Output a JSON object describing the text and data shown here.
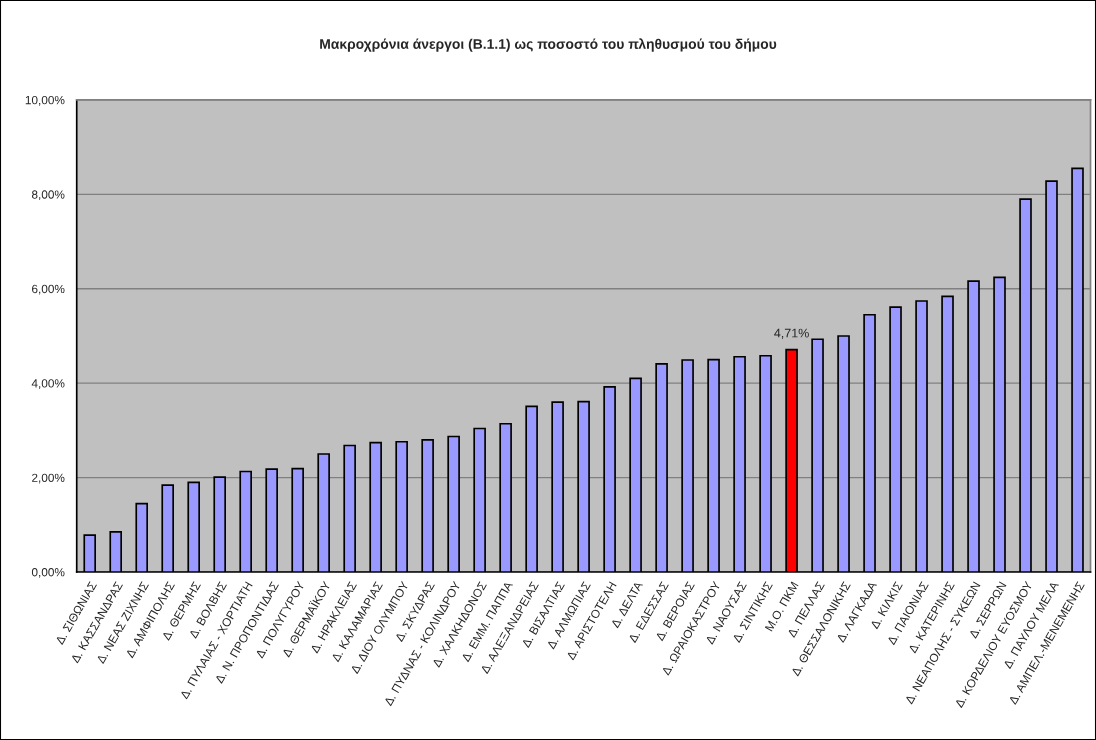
{
  "chart_data": {
    "type": "bar",
    "title": "Μακροχρόνια άνεργοι (Β.1.1) ως ποσοστό του πληθυσμού του δήμου",
    "categories": [
      "Δ. ΣΙΘΩΝΙΑΣ",
      "Δ. ΚΑΣΣΑΝΔΡΑΣ",
      "Δ. ΝΕΑΣ ΖΙΧΝΗΣ",
      "Δ. ΑΜΦΙΠΟΛΗΣ",
      "Δ. ΘΕΡΜΗΣ",
      "Δ. ΒΟΛΒΗΣ",
      "Δ. ΠΥΛΑΙΑΣ - ΧΟΡΤΙΑΤΗ",
      "Δ. Ν. ΠΡΟΠΟΝΤΙΔΑΣ",
      "Δ. ΠΟΛΥΓΥΡΟΥ",
      "Δ. ΘΕΡΜΑΪΚΟΥ",
      "Δ. ΗΡΑΚΛΕΙΑΣ",
      "Δ. ΚΑΛΑΜΑΡΙΑΣ",
      "Δ. ΔΙΟΥ ΟΛΥΜΠΟΥ",
      "Δ. ΣΚΥΔΡΑΣ",
      "Δ. ΠΥΔΝΑΣ - ΚΟΛΙΝΔΡΟΥ",
      "Δ. ΧΑΛΚΗΔΟΝΟΣ",
      "Δ. ΕΜΜ. ΠΑΠΠΑ",
      "Δ. ΑΛΕΞΑΝΔΡΕΙΑΣ",
      "Δ. ΒΙΣΑΛΤΙΑΣ",
      "Δ. ΑΛΜΩΠΙΑΣ",
      "Δ. ΑΡΙΣΤΟΤΕΛΗ",
      "Δ. ΔΕΛΤΑ",
      "Δ. ΕΔΕΣΣΑΣ",
      "Δ. ΒΕΡΟΙΑΣ",
      "Δ. ΩΡΑΙΟΚΑΣΤΡΟΥ",
      "Δ. ΝΑΟΥΣΑΣ",
      "Δ. ΣΙΝΤΙΚΗΣ",
      "Μ.Ο. ΠΚΜ",
      "Δ. ΠΕΛΛΑΣ",
      "Δ. ΘΕΣΣΑΛΟΝΙΚΗΣ",
      "Δ. ΛΑΓΚΑΔΑ",
      "Δ. ΚΙΛΚΙΣ",
      "Δ. ΠΑΙΟΝΙΑΣ",
      "Δ. ΚΑΤΕΡΙΝΗΣ",
      "Δ. ΝΕΑΠΟΛΗΣ - ΣΥΚΕΩΝ",
      "Δ. ΣΕΡΡΩΝ",
      "Δ. ΚΟΡΔΕΛΙΟΥ ΕΥΟΣΜΟΥ",
      "Δ. ΠΑΥΛΟΥ ΜΕΛΑ",
      "Δ. ΑΜΠΕΛ.-ΜΕΝΕΜΕΝΗΣ"
    ],
    "values": [
      0.78,
      0.85,
      1.45,
      1.84,
      1.9,
      2.01,
      2.13,
      2.18,
      2.19,
      2.5,
      2.68,
      2.74,
      2.76,
      2.8,
      2.87,
      3.04,
      3.14,
      3.51,
      3.6,
      3.61,
      3.92,
      4.1,
      4.41,
      4.49,
      4.5,
      4.56,
      4.58,
      4.71,
      4.93,
      5.0,
      5.45,
      5.61,
      5.74,
      5.84,
      6.16,
      6.24,
      7.9,
      8.28,
      8.55
    ],
    "colors": [
      "#9999ff",
      "#9999ff",
      "#9999ff",
      "#9999ff",
      "#9999ff",
      "#9999ff",
      "#9999ff",
      "#9999ff",
      "#9999ff",
      "#9999ff",
      "#9999ff",
      "#9999ff",
      "#9999ff",
      "#9999ff",
      "#9999ff",
      "#9999ff",
      "#9999ff",
      "#9999ff",
      "#9999ff",
      "#9999ff",
      "#9999ff",
      "#9999ff",
      "#9999ff",
      "#9999ff",
      "#9999ff",
      "#9999ff",
      "#9999ff",
      "#ff0000",
      "#9999ff",
      "#9999ff",
      "#9999ff",
      "#9999ff",
      "#9999ff",
      "#9999ff",
      "#9999ff",
      "#9999ff",
      "#9999ff",
      "#9999ff",
      "#9999ff"
    ],
    "value_labels": [
      null,
      null,
      null,
      null,
      null,
      null,
      null,
      null,
      null,
      null,
      null,
      null,
      null,
      null,
      null,
      null,
      null,
      null,
      null,
      null,
      null,
      null,
      null,
      null,
      null,
      null,
      null,
      "4,71%",
      null,
      null,
      null,
      null,
      null,
      null,
      null,
      null,
      null,
      null,
      null
    ],
    "ylim": [
      0,
      10
    ],
    "yticks": [
      {
        "value": 0,
        "label": "0,00%"
      },
      {
        "value": 2,
        "label": "2,00%"
      },
      {
        "value": 4,
        "label": "4,00%"
      },
      {
        "value": 6,
        "label": "6,00%"
      },
      {
        "value": 8,
        "label": "8,00%"
      },
      {
        "value": 10,
        "label": "10,00%"
      }
    ],
    "grid": "y"
  }
}
